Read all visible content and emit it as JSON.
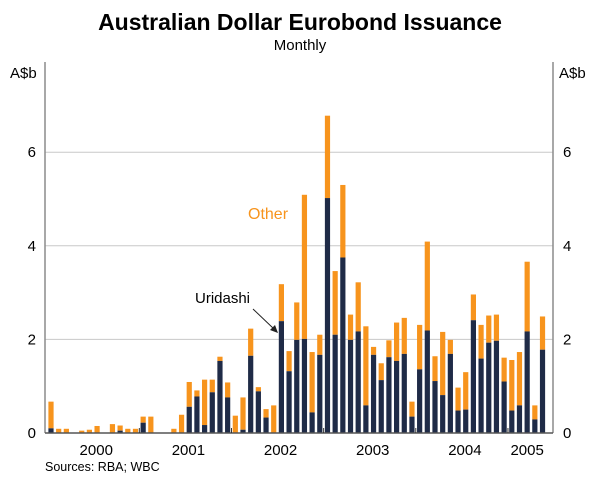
{
  "chart_data": {
    "type": "bar",
    "stacked": true,
    "title": "Australian Dollar Eurobond Issuance",
    "subtitle": "Monthly",
    "ylabel_left": "A$b",
    "ylabel_right": "A$b",
    "ylim": [
      0,
      7.9
    ],
    "yticks": [
      0,
      2,
      4,
      6
    ],
    "grid": true,
    "x_start": "2000-01",
    "year_labels": [
      "2000",
      "2001",
      "2002",
      "2003",
      "2004",
      "2005"
    ],
    "source": "Sources:  RBA; WBC",
    "colors": {
      "Uridashi": "#1f2b47",
      "Other": "#f7941d",
      "grid": "#c8c8c8",
      "axis": "#8c8c8c"
    },
    "annotations": {
      "other": "Other",
      "uridashi": "Uridashi"
    },
    "series": [
      {
        "name": "Uridashi",
        "values": [
          0.1,
          0,
          0,
          0,
          0,
          0,
          0,
          0,
          0,
          0.05,
          0,
          0,
          0.22,
          0,
          0,
          0,
          0,
          0,
          0.56,
          0.78,
          0.17,
          0.87,
          1.54,
          0.76,
          0,
          0.07,
          1.65,
          0.89,
          0.33,
          0,
          2.39,
          1.32,
          1.99,
          2.01,
          0.44,
          1.67,
          5.02,
          2.1,
          3.75,
          1.99,
          2.17,
          0.59,
          1.67,
          1.13,
          1.62,
          1.54,
          1.69,
          0.35,
          1.36,
          2.19,
          1.11,
          0.81,
          1.69,
          0.48,
          0.5,
          2.41,
          1.59,
          1.93,
          1.97,
          1.1,
          0.48,
          0.59,
          2.17,
          0.29,
          1.78
        ]
      },
      {
        "name": "Other",
        "values": [
          0.57,
          0.09,
          0.09,
          0,
          0.05,
          0.07,
          0.15,
          0,
          0.19,
          0.11,
          0.09,
          0.09,
          0.13,
          0.35,
          0,
          0,
          0.09,
          0.39,
          0.53,
          0.13,
          0.97,
          0.27,
          0.09,
          0.32,
          0.37,
          0.69,
          0.58,
          0.09,
          0.18,
          0.59,
          0.79,
          0.43,
          0.8,
          3.08,
          1.29,
          0.43,
          1.76,
          1.36,
          1.55,
          0.54,
          1.05,
          1.69,
          0.17,
          0.36,
          0.36,
          0.82,
          0.77,
          0.32,
          0.95,
          1.9,
          0.53,
          1.35,
          0.3,
          0.49,
          0.8,
          0.55,
          0.72,
          0.58,
          0.56,
          0.51,
          1.08,
          1.14,
          1.49,
          0.3,
          0.71
        ]
      }
    ]
  }
}
